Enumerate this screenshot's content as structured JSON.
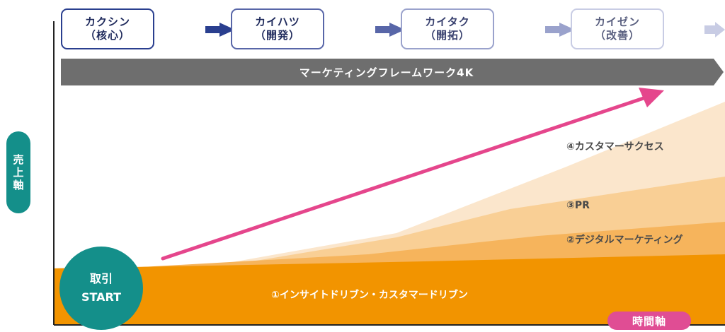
{
  "stages": [
    {
      "line1": "カクシン",
      "line2": "（核心）",
      "color": "#2a3f8f"
    },
    {
      "line1": "カイハツ",
      "line2": "（開発）",
      "color": "#5866a8"
    },
    {
      "line1": "カイタク",
      "line2": "（開拓）",
      "color": "#9aa2cc"
    },
    {
      "line1": "カイゼン",
      "line2": "（改善）",
      "color": "#c8cce4"
    }
  ],
  "framework_label": "マーケティングフレームワーク4K",
  "start": {
    "line1": "取引",
    "line2": "START"
  },
  "y_axis_label": [
    "売",
    "上",
    "軸"
  ],
  "x_axis_label": "時間軸",
  "bands": [
    {
      "label": "①インサイトドリブン・カスタマードリブン",
      "color": "#f29400"
    },
    {
      "label": "②デジタルマーケティング",
      "color": "#f6b45c"
    },
    {
      "label": "③PR",
      "color": "#f9cf95"
    },
    {
      "label": "④カスタマーサクセス",
      "color": "#fbe6cc"
    }
  ],
  "colors": {
    "framework_bar": "#6e6e6e",
    "growth_arrow": "#e5468c",
    "start_circle": "#148f8a",
    "y_axis_pill": "#148f8a",
    "x_axis_pill": "#e04d94",
    "axis_line": "#222222"
  }
}
